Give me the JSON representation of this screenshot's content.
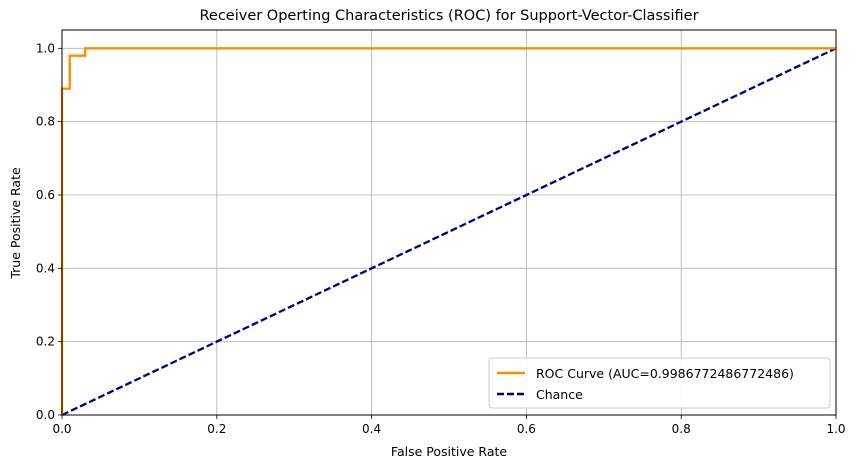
{
  "chart_data": {
    "type": "line",
    "title": "Receiver Operting Characteristics (ROC) for Support-Vector-Classifier",
    "xlabel": "False Positive Rate",
    "ylabel": "True Positive Rate",
    "xlim": [
      0,
      1
    ],
    "ylim": [
      0,
      1.05
    ],
    "xticks": [
      0.0,
      0.2,
      0.4,
      0.6,
      0.8,
      1.0
    ],
    "xtick_labels": [
      "0.0",
      "0.2",
      "0.4",
      "0.6",
      "0.8",
      "1.0"
    ],
    "yticks": [
      0.0,
      0.2,
      0.4,
      0.6,
      0.8,
      1.0
    ],
    "ytick_labels": [
      "0.0",
      "0.2",
      "0.4",
      "0.6",
      "0.8",
      "1.0"
    ],
    "grid": true,
    "legend_position": "bottom-right",
    "series": [
      {
        "name": "ROC Curve (AUC=0.9986772486772486)",
        "color": "#ff8c00",
        "style": "solid",
        "x": [
          0.0,
          0.0,
          0.0,
          0.0,
          0.0,
          0.0,
          0.0,
          0.0,
          0.0,
          0.0,
          0.0,
          0.01,
          0.01,
          0.01,
          0.01,
          0.03,
          0.03,
          1.0
        ],
        "y": [
          0.0,
          0.09,
          0.16,
          0.27,
          0.36,
          0.45,
          0.55,
          0.64,
          0.73,
          0.82,
          0.89,
          0.89,
          0.94,
          0.98,
          0.98,
          0.98,
          1.0,
          1.0
        ]
      },
      {
        "name": "Chance",
        "color": "#000080",
        "style": "dashed",
        "x": [
          0,
          1
        ],
        "y": [
          0,
          1
        ]
      }
    ]
  }
}
